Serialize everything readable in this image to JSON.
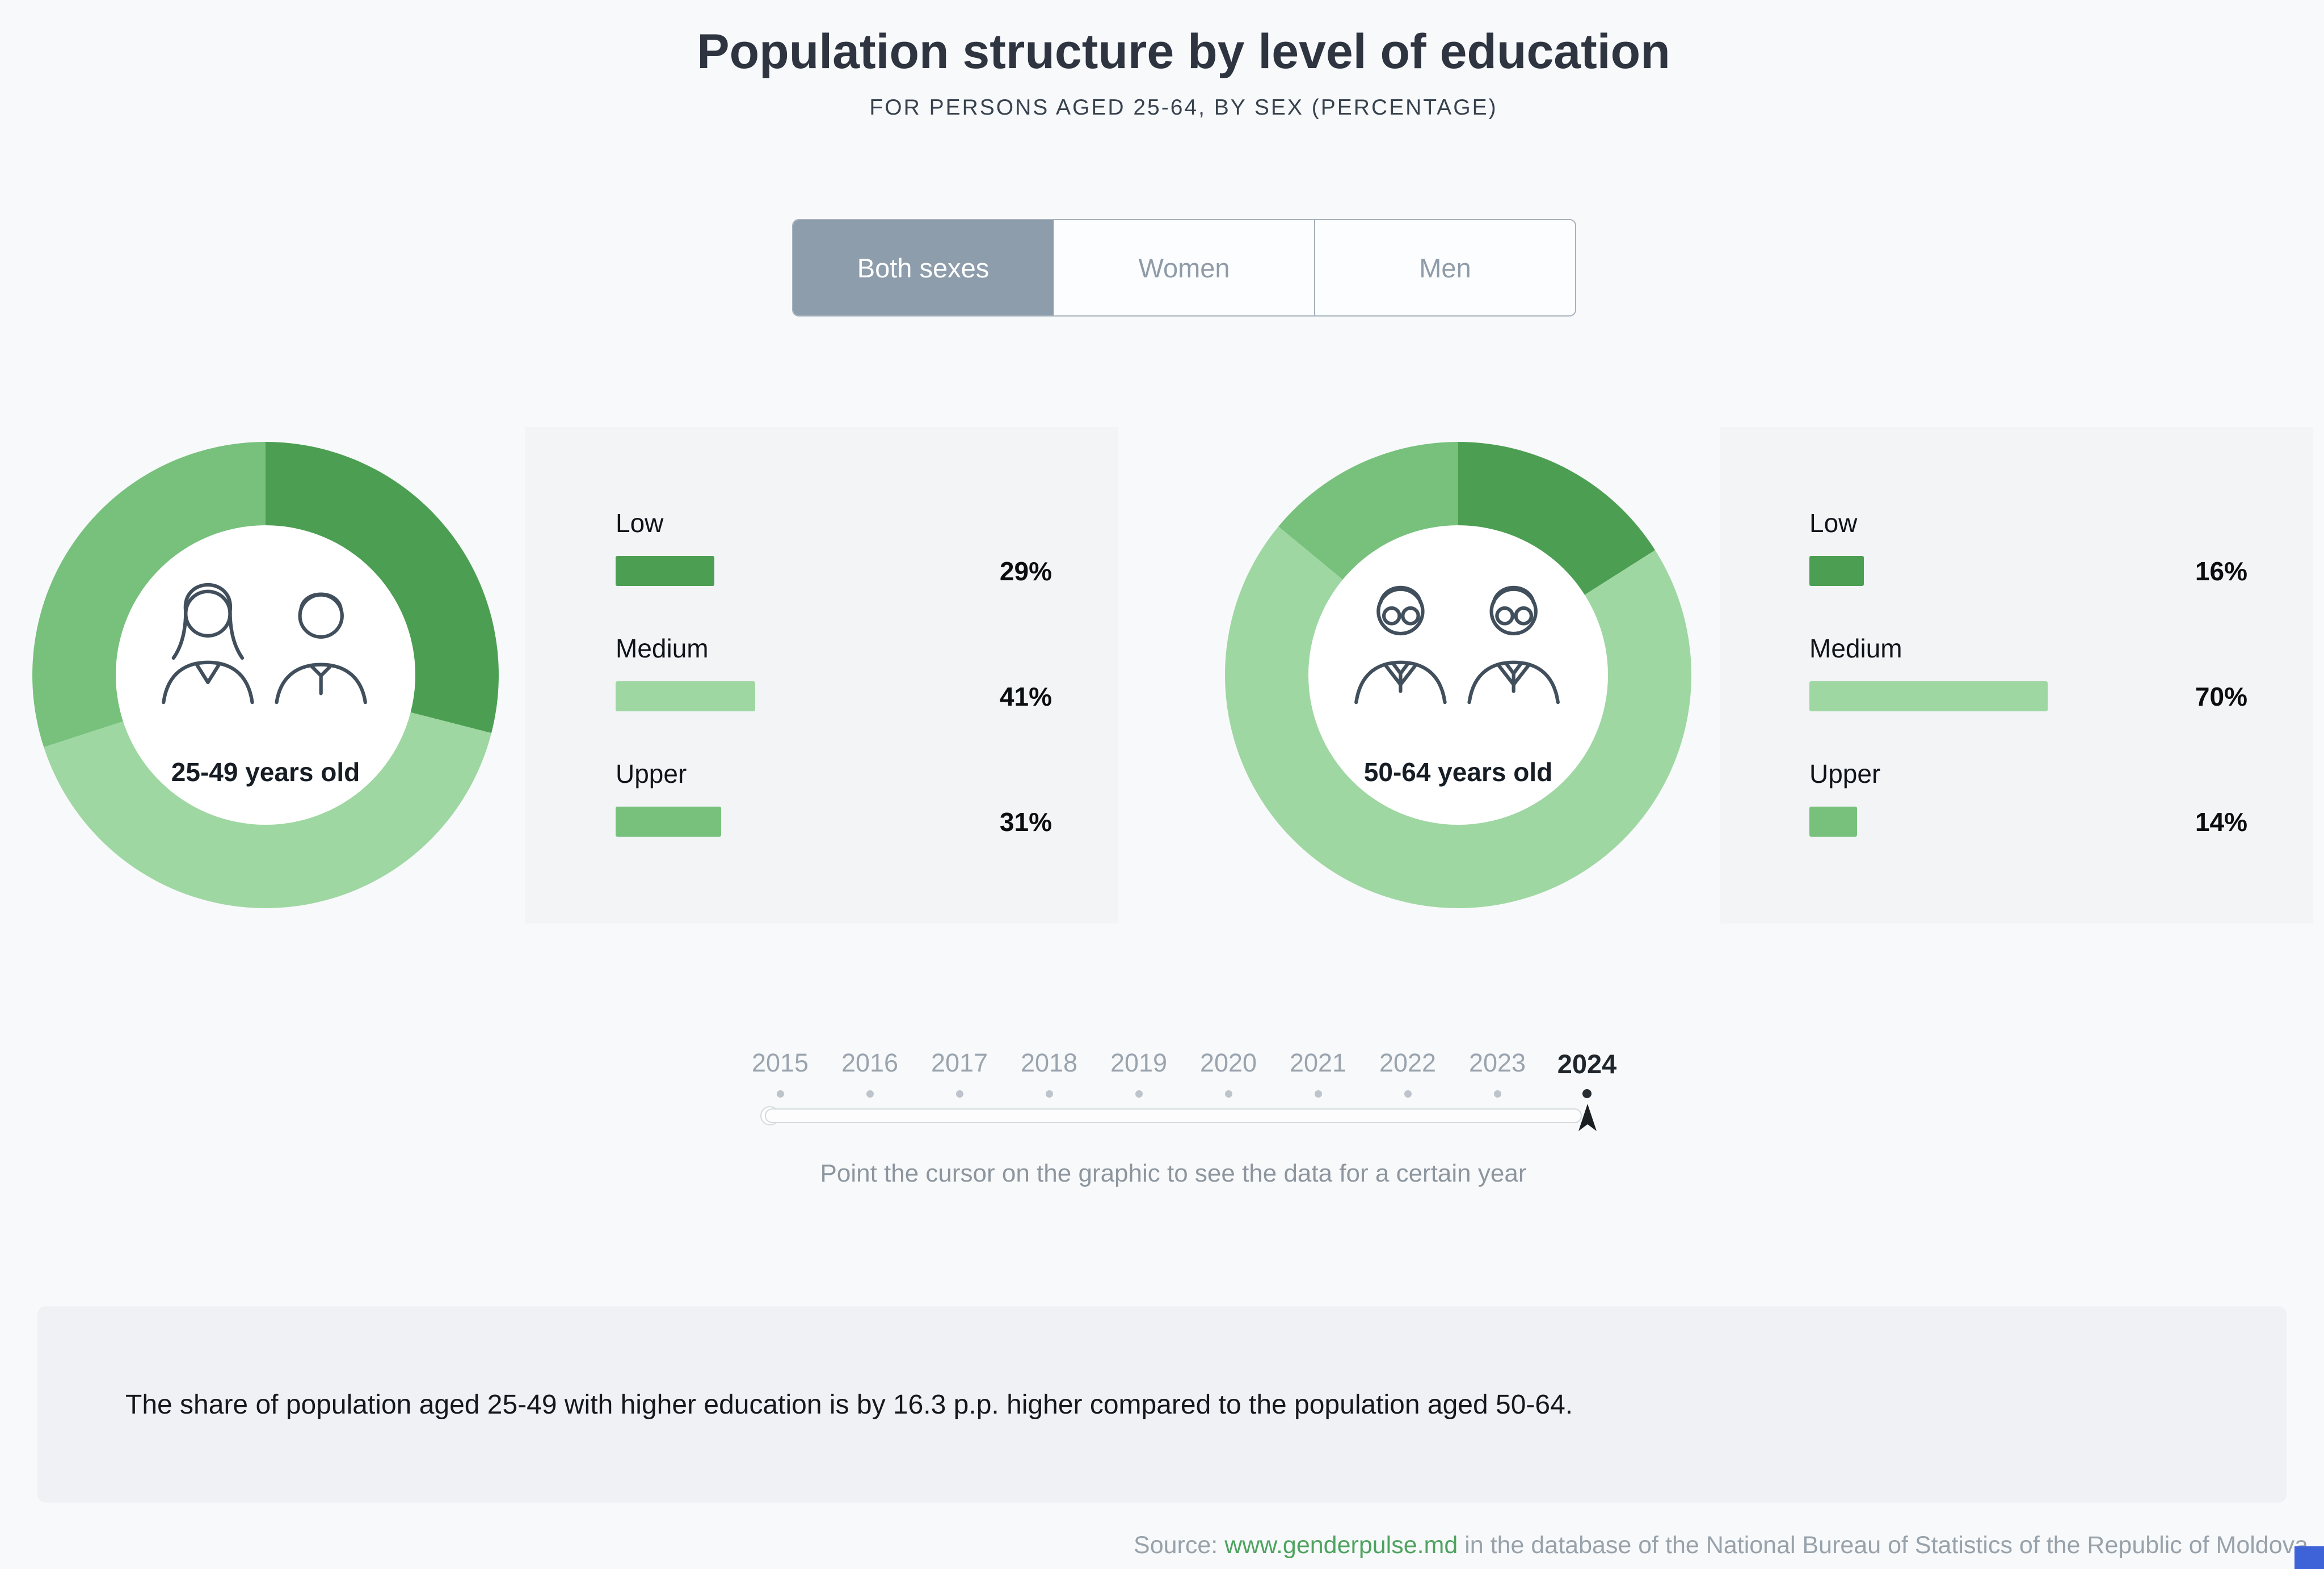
{
  "page": {
    "title": "Population structure by level of education",
    "subtitle": "FOR PERSONS AGED 25-64, BY SEX (PERCENTAGE)"
  },
  "tabs": {
    "options": [
      {
        "label": "Both sexes",
        "selected": true
      },
      {
        "label": "Women",
        "selected": false
      },
      {
        "label": "Men",
        "selected": false
      }
    ]
  },
  "colors": {
    "low": "#4c9f52",
    "medium": "#9fd7a2",
    "upper": "#77c17c",
    "tab_selected": "#8d9dab",
    "link": "#4ea35f",
    "badge": "#3e63d9"
  },
  "timeline": {
    "years": [
      "2015",
      "2016",
      "2017",
      "2018",
      "2019",
      "2020",
      "2021",
      "2022",
      "2023",
      "2024"
    ],
    "selected": "2024",
    "hint": "Point the cursor on the graphic to see the data for a certain year"
  },
  "insight": "The share of population aged 25-49 with higher education is by 16.3 p.p. higher compared to the population aged 50-64.",
  "source": {
    "prefix": "Source: ",
    "link": "www.genderpulse.md",
    "suffix": " in the database of the National Bureau of Statistics of the Republic of Moldova."
  },
  "chart_data": [
    {
      "type": "pie",
      "donut": true,
      "title": "25-49 years old",
      "categories": [
        "Low",
        "Medium",
        "Upper"
      ],
      "values": [
        29,
        41,
        31
      ],
      "unit": "%",
      "legend_position": "right"
    },
    {
      "type": "pie",
      "donut": true,
      "title": "50-64 years old",
      "categories": [
        "Low",
        "Medium",
        "Upper"
      ],
      "values": [
        16,
        70,
        14
      ],
      "unit": "%",
      "legend_position": "right"
    }
  ]
}
